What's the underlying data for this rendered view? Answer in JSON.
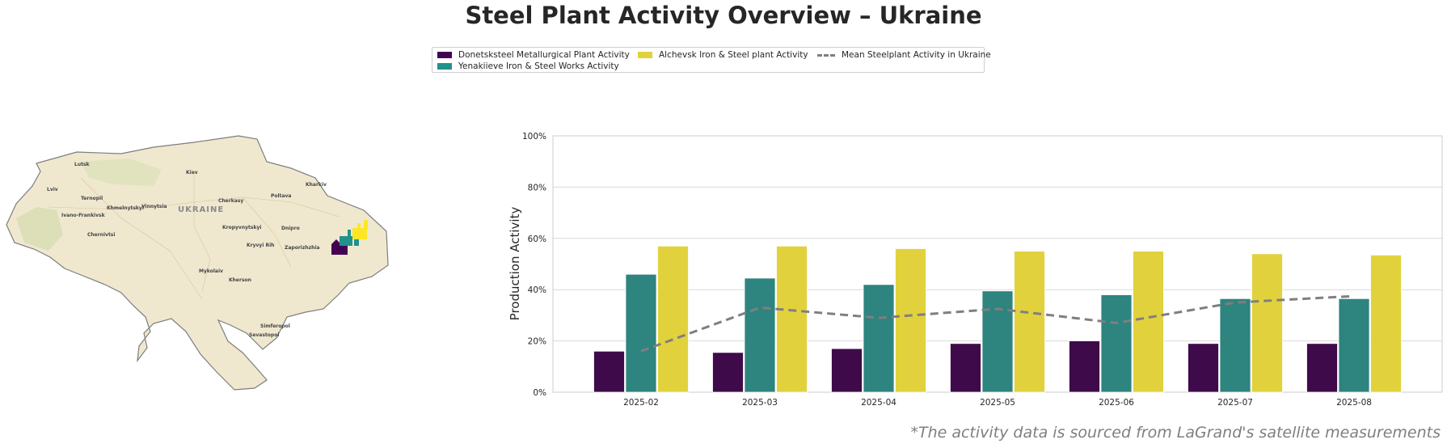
{
  "title": "Steel Plant Activity Overview – Ukraine",
  "footnote": "*The activity data is sourced from LaGrand's satellite measurements",
  "map": {
    "country_label": "UKRAINE",
    "cities": [
      "Lutsk",
      "Kiev",
      "Kharkiv",
      "Lviv",
      "Ternopil",
      "Cherkasy",
      "Poltava",
      "Khmelnytskyi",
      "Vinnytsia",
      "Ivano-Frankivsk",
      "Kropyvnytskyi",
      "Dnipro",
      "Chernivtsi",
      "Kryvyi Rih",
      "Zaporizhzhia",
      "Mykolaiv",
      "Kherson",
      "Simferopol",
      "Sevastopol"
    ]
  },
  "colors": {
    "donetsk": "#440154",
    "yenakiieve": "#21918c",
    "alchevsk": "#fde725",
    "mean": "#7f7f7f"
  },
  "chart_data": {
    "type": "bar",
    "categories": [
      "2025-02",
      "2025-03",
      "2025-04",
      "2025-05",
      "2025-06",
      "2025-07",
      "2025-08"
    ],
    "series": [
      {
        "name": "Donetsksteel Metallurgical Plant Activity",
        "values": [
          16,
          15.5,
          17,
          19,
          20,
          19,
          19
        ]
      },
      {
        "name": "Yenakiieve Iron & Steel Works Activity",
        "values": [
          46,
          44.5,
          42,
          39.5,
          38,
          36.5,
          36.5
        ]
      },
      {
        "name": "Alchevsk Iron & Steel plant Activity",
        "values": [
          57,
          57,
          56,
          55,
          55,
          54,
          53.5
        ]
      }
    ],
    "line_series": {
      "name": "Mean Steelplant Activity in Ukraine",
      "values": [
        16,
        33,
        29,
        32.5,
        27,
        35,
        37.5
      ]
    },
    "ylabel": "Production Activity",
    "xlabel": "",
    "ylim": [
      0,
      100
    ],
    "yticks": [
      "0%",
      "20%",
      "40%",
      "60%",
      "80%",
      "100%"
    ],
    "grid": true,
    "legend_position": "top-center"
  }
}
